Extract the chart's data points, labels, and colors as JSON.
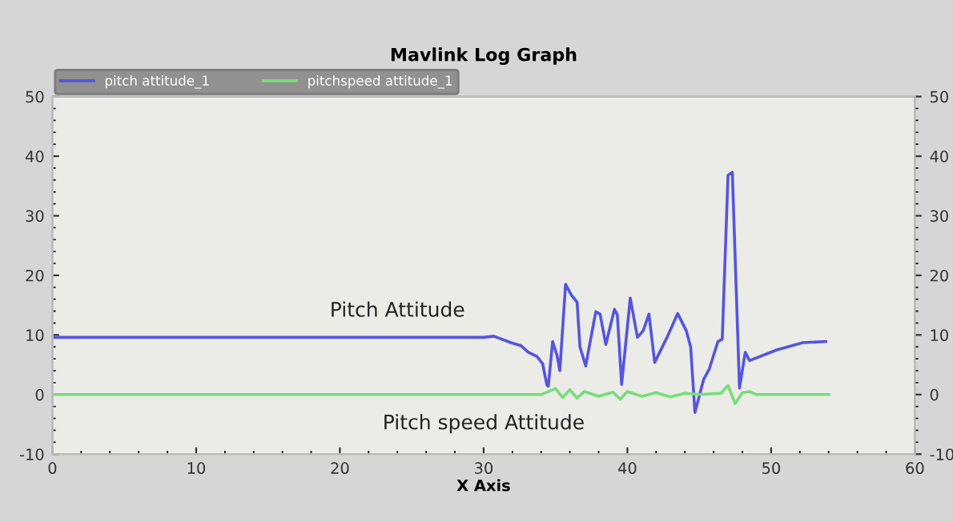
{
  "chart_data": {
    "type": "line",
    "title": "Mavlink Log Graph",
    "xlabel": "X Axis",
    "xlim": [
      0,
      60
    ],
    "xticks": [
      0,
      10,
      20,
      30,
      40,
      50,
      60
    ],
    "ylim": [
      -10,
      50
    ],
    "yticks": [
      -10,
      0,
      10,
      20,
      30,
      40,
      50
    ],
    "y2lim": [
      -10,
      50
    ],
    "y2ticks": [
      -10,
      0,
      10,
      20,
      30,
      40,
      50
    ],
    "grid": false,
    "legend": "top left",
    "marker": "none",
    "line_style": "solid",
    "series": [
      {
        "name": "pitch attitude_1",
        "color": "#5555dd",
        "x": [
          0,
          30,
          30.7,
          31.9,
          32.6,
          33.1,
          33.7,
          34.1,
          34.4,
          34.5,
          34.8,
          35.1,
          35.3,
          35.7,
          36.1,
          36.5,
          36.7,
          37.1,
          37.8,
          38.1,
          38.5,
          39.1,
          39.3,
          39.6,
          40.2,
          40.7,
          41.1,
          41.5,
          41.9,
          42.8,
          43.5,
          44.1,
          44.4,
          44.7,
          45.3,
          45.7,
          46.3,
          46.6,
          47.0,
          47.3,
          47.8,
          48.2,
          48.5,
          50.4,
          52.2,
          53.8
        ],
        "values": [
          9.6,
          9.6,
          9.8,
          8.7,
          8.2,
          7.1,
          6.4,
          5.2,
          1.6,
          1.4,
          8.9,
          6.6,
          4.0,
          18.5,
          16.7,
          15.5,
          8.0,
          4.8,
          13.9,
          13.5,
          8.4,
          14.3,
          13.4,
          1.7,
          16.2,
          9.6,
          10.7,
          13.5,
          5.4,
          9.8,
          13.6,
          10.7,
          8.0,
          -3.0,
          2.5,
          4.3,
          8.9,
          9.3,
          36.8,
          37.3,
          1.1,
          7.1,
          5.7,
          7.5,
          8.7,
          8.9
        ]
      },
      {
        "name": "pitchspeed attitude_1",
        "color": "#77dd77",
        "x": [
          0,
          34,
          35,
          35.5,
          36,
          36.5,
          37,
          38,
          39,
          39.5,
          40,
          41,
          42,
          43,
          44,
          45,
          46.5,
          47,
          47.5,
          48,
          48.5,
          49,
          54
        ],
        "values": [
          0,
          0,
          1,
          -0.5,
          0.8,
          -0.6,
          0.5,
          -0.3,
          0.4,
          -0.8,
          0.5,
          -0.3,
          0.3,
          -0.4,
          0.2,
          0,
          0.2,
          1.5,
          -1.5,
          0.3,
          0.5,
          0,
          0
        ]
      }
    ],
    "annotations": [
      "Pitch Attitude",
      "Pitch speed Attitude"
    ]
  }
}
